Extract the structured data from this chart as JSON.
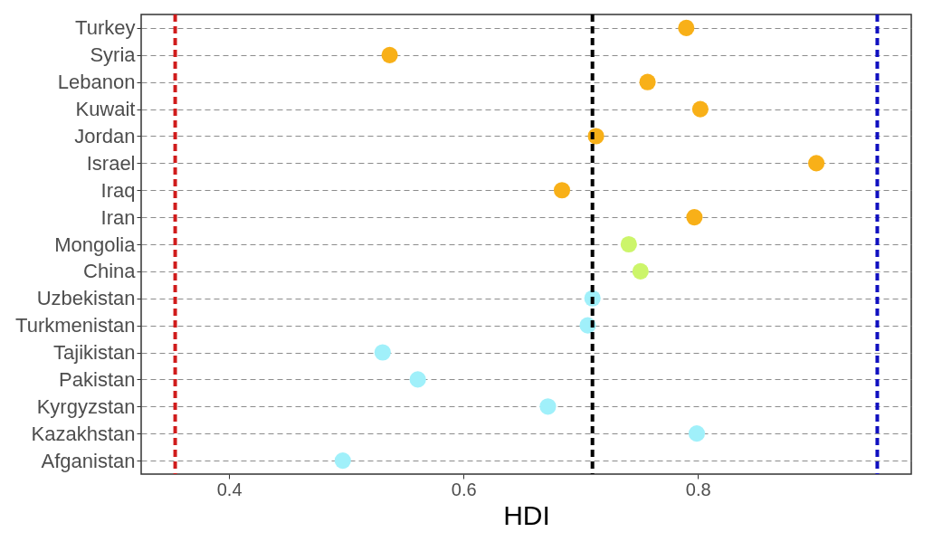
{
  "chart_data": {
    "type": "scatter",
    "xlabel": "HDI",
    "categories": [
      "Turkey",
      "Syria",
      "Lebanon",
      "Kuwait",
      "Jordan",
      "Israel",
      "Iraq",
      "Iran",
      "Mongolia",
      "China",
      "Uzbekistan",
      "Turkmenistan",
      "Tajikistan",
      "Pakistan",
      "Kyrgyzstan",
      "Kazakhstan",
      "Afganistan"
    ],
    "values": [
      0.79,
      0.537,
      0.757,
      0.802,
      0.713,
      0.901,
      0.684,
      0.797,
      0.741,
      0.751,
      0.71,
      0.706,
      0.531,
      0.561,
      0.672,
      0.799,
      0.497
    ],
    "colors": [
      "#f8b018",
      "#f8b018",
      "#f8b018",
      "#f8b018",
      "#f8b018",
      "#f8b018",
      "#f8b018",
      "#f8b018",
      "#ccf56a",
      "#ccf56a",
      "#a0f0fa",
      "#a0f0fa",
      "#a0f0fa",
      "#a0f0fa",
      "#a0f0fa",
      "#a0f0fa",
      "#a0f0fa"
    ],
    "orientation": "horizontal",
    "xlim": [
      0.325,
      0.982
    ],
    "xticks": [
      0.4,
      0.6,
      0.8
    ],
    "ref_lines": [
      {
        "axis": "x",
        "value": 0.354,
        "color": "#d01c1c",
        "line_style": "dashed"
      },
      {
        "axis": "x",
        "value": 0.71,
        "color": "#000000",
        "line_style": "dashed"
      },
      {
        "axis": "x",
        "value": 0.953,
        "color": "#1010c0",
        "line_style": "dashed"
      }
    ],
    "grid": "y",
    "marker": "circle"
  }
}
